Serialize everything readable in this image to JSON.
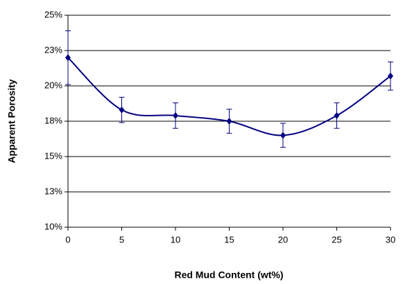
{
  "chart_data": {
    "type": "line",
    "x_label": "Red Mud Content (wt%)",
    "y_label": "Apparent Porosity",
    "series": [
      {
        "x": [
          0,
          5,
          10,
          15,
          20,
          25,
          30
        ],
        "values": [
          22.0,
          18.3,
          17.9,
          17.5,
          16.5,
          17.9,
          20.7
        ],
        "errors": [
          1.9,
          0.9,
          0.9,
          0.85,
          0.85,
          0.9,
          1.0
        ],
        "color": "#000080"
      }
    ],
    "xlim": [
      0,
      30
    ],
    "xticks": [
      0,
      5,
      10,
      15,
      20,
      25,
      30
    ],
    "ylim": [
      10,
      25
    ],
    "yticks": [
      {
        "value": 10,
        "label": "10%"
      },
      {
        "value": 12.5,
        "label": "13%"
      },
      {
        "value": 15,
        "label": "15%"
      },
      {
        "value": 17.5,
        "label": "18%"
      },
      {
        "value": 20,
        "label": "20%"
      },
      {
        "value": 22.5,
        "label": "23%"
      },
      {
        "value": 25,
        "label": "25%"
      }
    ],
    "grid": true
  }
}
